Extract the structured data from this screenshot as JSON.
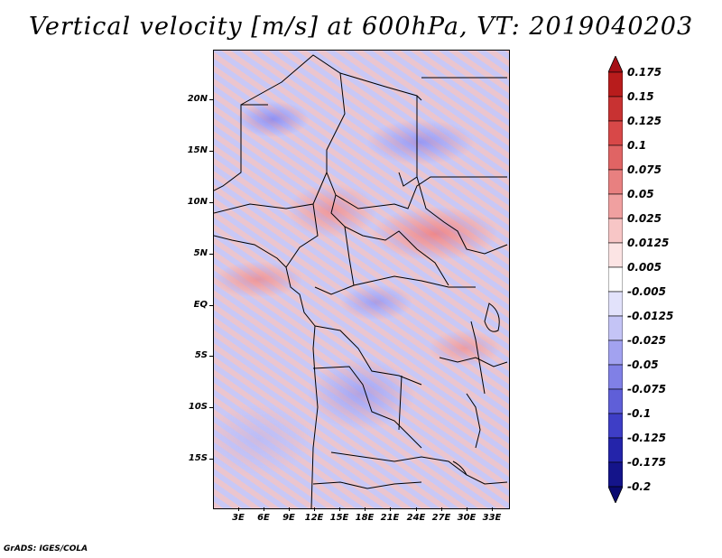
{
  "title": "Vertical velocity [m/s] at 600hPa, VT: 2019040203",
  "latitude_labels": [
    "20N",
    "15N",
    "10N",
    "5N",
    "EQ",
    "5S",
    "10S",
    "15S"
  ],
  "longitude_labels": [
    "3E",
    "6E",
    "9E",
    "12E",
    "15E",
    "18E",
    "21E",
    "24E",
    "27E",
    "30E",
    "33E"
  ],
  "colorbar": {
    "levels": [
      "0.175",
      "0.15",
      "0.125",
      "0.1",
      "0.075",
      "0.05",
      "0.025",
      "0.0125",
      "0.005",
      "-0.005",
      "-0.0125",
      "-0.025",
      "-0.05",
      "-0.075",
      "-0.1",
      "-0.125",
      "-0.175",
      "-0.2"
    ],
    "colors": [
      "#a50f15",
      "#b81c1c",
      "#c83232",
      "#d84848",
      "#e06464",
      "#e88080",
      "#f0a0a0",
      "#f7c6c6",
      "#fce4e4",
      "#ffffff",
      "#e2e2fb",
      "#c4c4f6",
      "#a2a2f0",
      "#8080e6",
      "#5f5fd8",
      "#3e3ec6",
      "#2424aa",
      "#14148a",
      "#0a0a70"
    ]
  },
  "credit": "GrADS: IGES/COLA"
}
